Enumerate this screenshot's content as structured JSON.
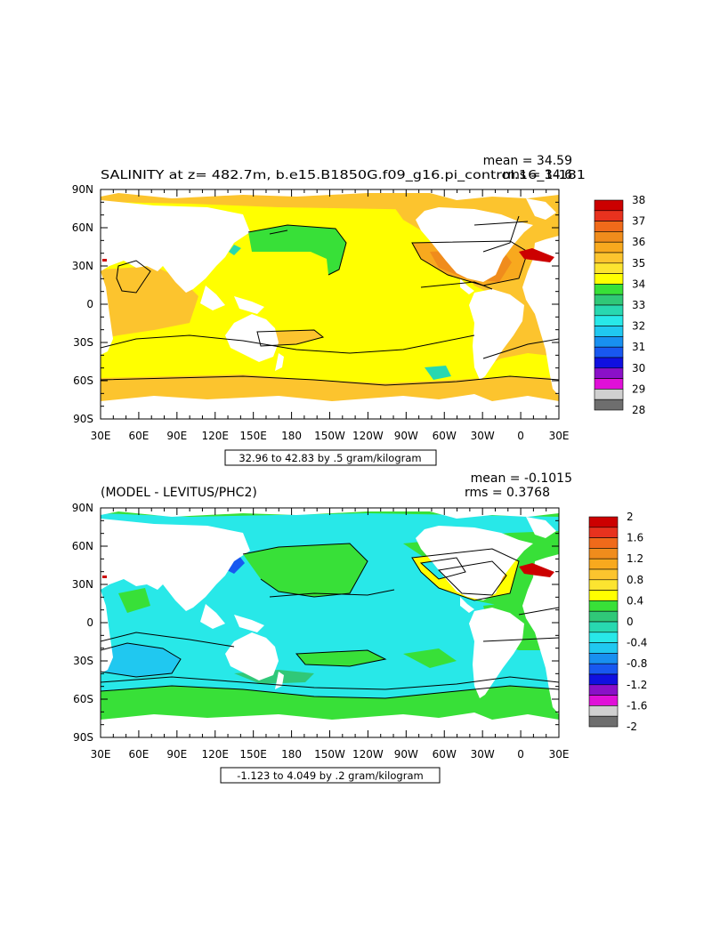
{
  "x_tick_labels": [
    "30E",
    "60E",
    "90E",
    "120E",
    "150E",
    "180",
    "150W",
    "120W",
    "90W",
    "60W",
    "30W",
    "0",
    "30E"
  ],
  "y_tick_labels": [
    "90N",
    "60N",
    "30N",
    "0",
    "30S",
    "60S",
    "90S"
  ],
  "panel1": {
    "title": "SALINITY at z= 482.7m, b.e15.B1850G.f09_g16.pi_control.16_1-181",
    "mean_text": "mean = 34.59",
    "rms_text": "rms = 34.6",
    "range_text": "32.96 to 42.83 by .5 gram/kilogram",
    "colorbar_labels": [
      "38",
      "37",
      "36",
      "35",
      "34",
      "33",
      "32",
      "31",
      "30",
      "29",
      "28"
    ],
    "colorbar_colors": [
      "#cc0000",
      "#e8321e",
      "#f06a1a",
      "#f08c1c",
      "#f8a91e",
      "#fcc42e",
      "#fce430",
      "#ffff00",
      "#38e038",
      "#30c878",
      "#28d8b0",
      "#28e8e8",
      "#20c8f0",
      "#1890f0",
      "#1858f0",
      "#1010e0",
      "#8a10c8",
      "#e010d8",
      "#d0d0d0",
      "#6e6e6e"
    ],
    "colors": {
      "ocean_main": "#ffff00",
      "subtropical": "#fcc42e",
      "atlantic_high": "#f8a91e",
      "atlantic_core": "#f08c1c",
      "arctic": "#fcc42e",
      "subpolar": "#38e038"
    }
  },
  "panel2": {
    "title": "(MODEL - LEVITUS/PHC2)",
    "mean_text": "mean = -0.1015",
    "rms_text": "rms = 0.3768",
    "range_text": "-1.123 to 4.049 by .2 gram/kilogram",
    "colorbar_labels": [
      "2",
      "1.6",
      "1.2",
      "0.8",
      "0.4",
      "0",
      "-0.4",
      "-0.8",
      "-1.2",
      "-1.6",
      "-2"
    ],
    "colorbar_colors": [
      "#cc0000",
      "#e8321e",
      "#f06a1a",
      "#f08c1c",
      "#f8a91e",
      "#fcc42e",
      "#fce430",
      "#ffff00",
      "#38e038",
      "#30c878",
      "#28d8b0",
      "#28e8e8",
      "#20c8f0",
      "#1890f0",
      "#1858f0",
      "#1010e0",
      "#8a10c8",
      "#e010d8",
      "#d0d0d0",
      "#6e6e6e"
    ],
    "colors": {
      "ocean_main": "#28e8e8",
      "southern": "#38e038",
      "pacific_green": "#38e038",
      "indian_blue": "#20c8f0",
      "atlantic_yellow": "#ffff00",
      "atlantic_orange": "#f8a91e"
    }
  }
}
